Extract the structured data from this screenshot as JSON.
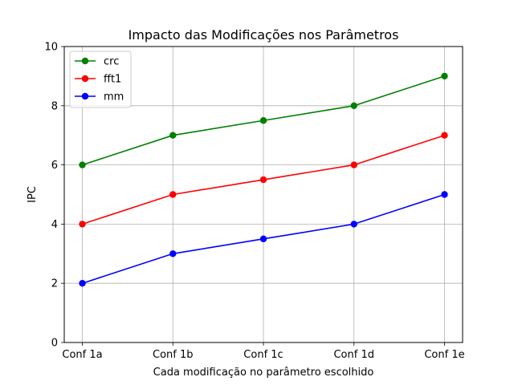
{
  "chart_data": {
    "type": "line",
    "title": "Impacto das Modificações nos Parâmetros",
    "xlabel": "Cada modificação no parâmetro escolhido",
    "ylabel": "IPC",
    "categories": [
      "Conf 1a",
      "Conf 1b",
      "Conf 1c",
      "Conf 1d",
      "Conf 1e"
    ],
    "ylim": [
      0,
      10
    ],
    "yticks": [
      0,
      2,
      4,
      6,
      8,
      10
    ],
    "grid": true,
    "legend_position": "top-left",
    "series": [
      {
        "name": "crc",
        "color": "#008000",
        "values": [
          6,
          7,
          7.5,
          8,
          9
        ]
      },
      {
        "name": "fft1",
        "color": "#ff0000",
        "values": [
          4,
          5,
          5.5,
          6,
          7
        ]
      },
      {
        "name": "mm",
        "color": "#0000ff",
        "values": [
          2,
          3,
          3.5,
          4,
          5
        ]
      }
    ]
  }
}
